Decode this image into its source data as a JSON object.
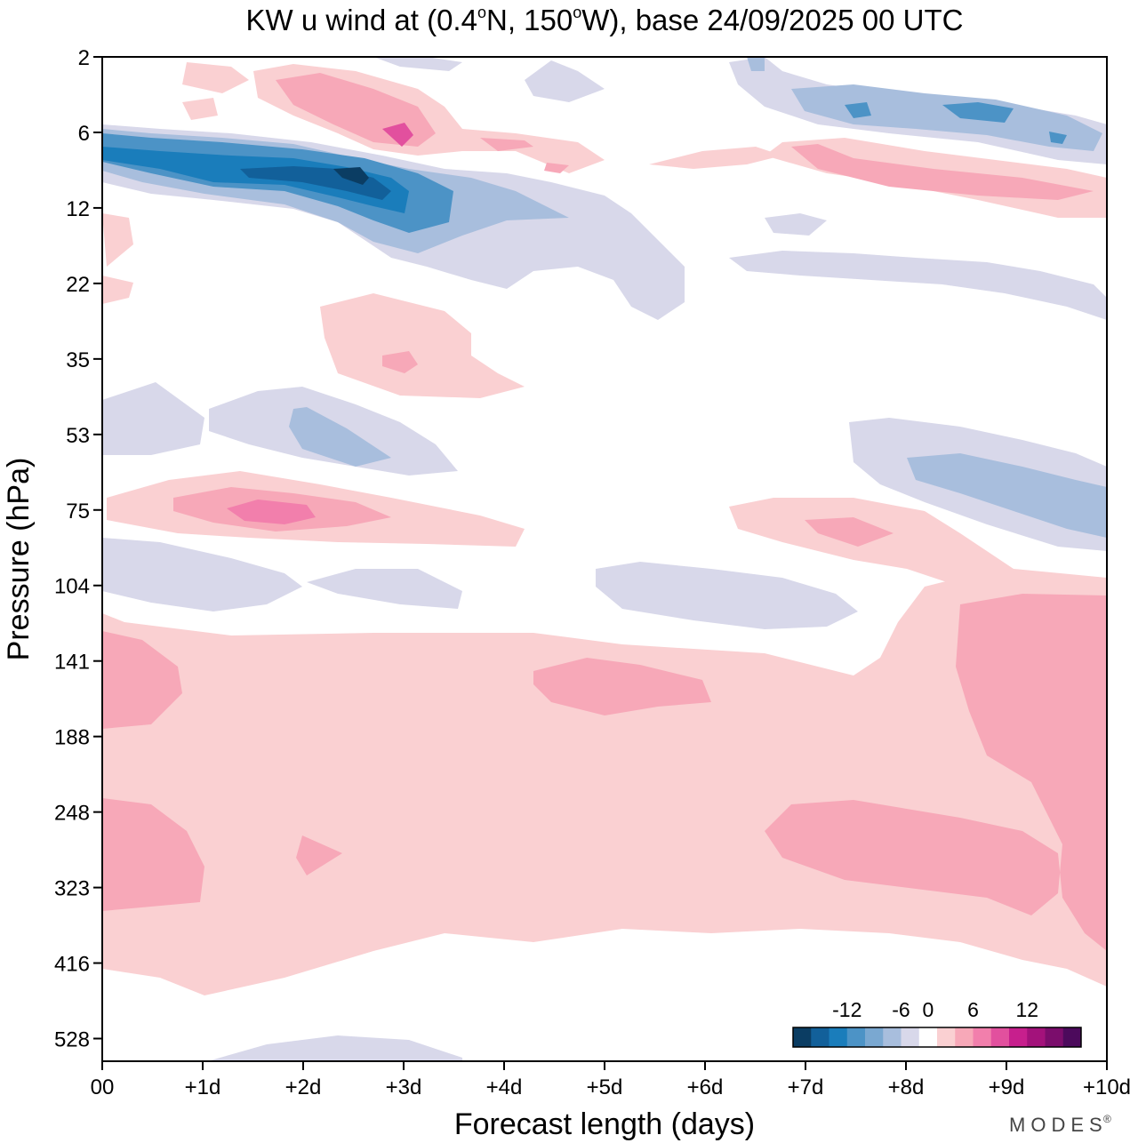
{
  "chart_data": {
    "type": "contour",
    "title_prefix": "KW u wind at (0.4",
    "title_lat": "N, 150",
    "title_suffix": "W),  base 24/09/2025  00 UTC",
    "degree_symbol": "o",
    "xlabel": "Forecast length (days)",
    "ylabel": "Pressure (hPa)",
    "x_ticks": [
      "00",
      "+1d",
      "+2d",
      "+3d",
      "+4d",
      "+5d",
      "+6d",
      "+7d",
      "+8d",
      "+9d",
      "+10d"
    ],
    "x_range_days": [
      0,
      10
    ],
    "y_ticks": [
      "2",
      "6",
      "12",
      "22",
      "35",
      "53",
      "75",
      "104",
      "141",
      "188",
      "248",
      "323",
      "416",
      "528"
    ],
    "y_range_hPa": [
      2,
      528
    ],
    "colorbar": {
      "tick_labels": [
        "-12",
        "-6",
        "0",
        "6",
        "12"
      ],
      "levels": [
        -16,
        -14,
        -12,
        -10,
        -8,
        -6,
        -4,
        -2,
        2,
        4,
        6,
        8,
        10,
        12,
        14,
        16
      ],
      "colors": [
        "#0b3d63",
        "#12609a",
        "#1a7dbb",
        "#4c93c6",
        "#7aa8d1",
        "#a8bedd",
        "#d8d8ea",
        "#ffffff",
        "#fad0d2",
        "#f7a8b8",
        "#f27fac",
        "#e2509e",
        "#c71f8d",
        "#a3127b",
        "#7b0d6c",
        "#4c0a5c"
      ]
    },
    "features": [
      {
        "sign": "negative",
        "peak": -16,
        "day": 2.5,
        "hPa": 9,
        "note": "strong easterly anomaly descending from 6 to 16 hPa over days 0-4"
      },
      {
        "sign": "positive",
        "peak": 10,
        "day": 3.0,
        "hPa": 6,
        "note": "westerly anomaly above the easterly core"
      },
      {
        "sign": "positive",
        "peak": 8,
        "day": 9.0,
        "hPa": 9,
        "note": "westerly band days 7-10"
      },
      {
        "sign": "negative",
        "peak": -8,
        "day": 8.5,
        "hPa": 4,
        "note": "easterly band near 4 hPa days 7-10"
      },
      {
        "sign": "positive",
        "peak": 10,
        "day": 1.5,
        "hPa": 75,
        "note": "westerly anomaly near 75 hPa"
      },
      {
        "sign": "negative",
        "peak": -6,
        "day": 2.5,
        "hPa": 55,
        "note": "easterly anomaly near 53 hPa"
      },
      {
        "sign": "negative",
        "peak": -6,
        "day": 9.0,
        "hPa": 60,
        "note": "easterly anomaly near 60 hPa late forecast"
      },
      {
        "sign": "positive",
        "peak": 4,
        "day": 5.0,
        "hPa": 150,
        "note": "broad weak westerly anomaly 120-450 hPa"
      },
      {
        "sign": "positive",
        "peak": 6,
        "day": 9.5,
        "hPa": 200,
        "note": "westerly anomaly 100-350 hPa at end of forecast"
      }
    ]
  },
  "branding": {
    "text": "MODES",
    "mark": "®"
  }
}
